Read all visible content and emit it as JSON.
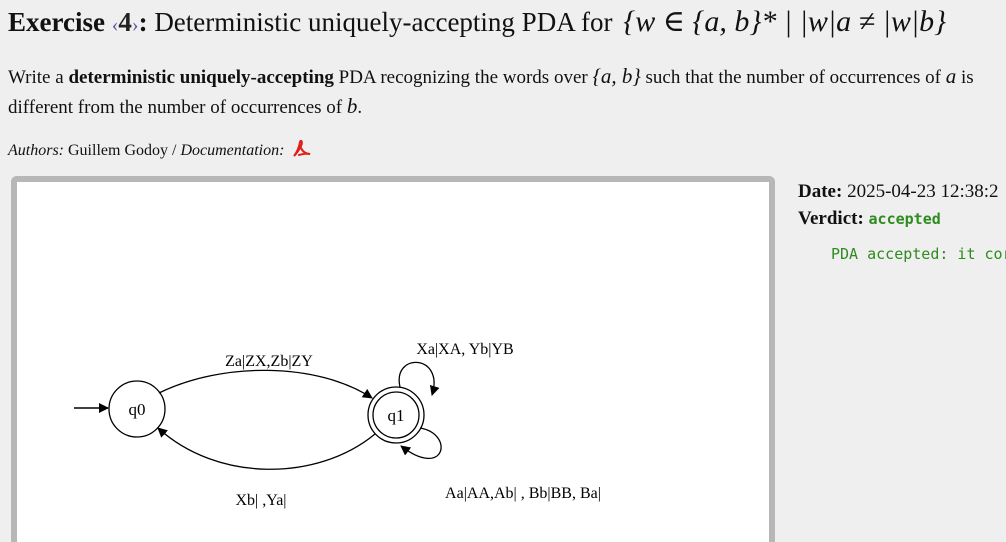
{
  "header": {
    "exercise_word": "Exercise",
    "exercise_number": "4",
    "colon": ":",
    "title_text": "Deterministic uniquely-accepting PDA for",
    "title_math": "{w ∈ {a, b}* | |w|a ≠ |w|b}"
  },
  "description": {
    "prefix": "Write a",
    "bold": "deterministic uniquely-accepting",
    "middle": "PDA recognizing the words over",
    "alphabet": "{a, b}",
    "after_alphabet": "such that the number of occurrences of",
    "sym_a": "a",
    "middle2": "is different from the number of occurrences of",
    "sym_b": "b",
    "end": "."
  },
  "authors": {
    "label": "Authors:",
    "names": "Guillem Godoy",
    "sep": " / ",
    "doc_label": "Documentation:"
  },
  "diagram": {
    "states": [
      {
        "id": "q0",
        "label": "q0",
        "initial": true,
        "accepting": false
      },
      {
        "id": "q1",
        "label": "q1",
        "initial": false,
        "accepting": true
      }
    ],
    "transitions": {
      "q0_q1": "Za|ZX,Zb|ZY",
      "q1_q0": "Xb| ,Ya|",
      "q1_loop_top": "Xa|XA, Yb|YB",
      "q1_loop_bottom": "Aa|AA,Ab| , Bb|BB, Ba|"
    }
  },
  "submission": {
    "date_label": "Date:",
    "date_value": "2025-04-23 12:38:2",
    "verdict_label": "Verdict:",
    "verdict_value": "accepted",
    "message": "PDA accepted: it cor"
  },
  "colors": {
    "verdict": "#2e8b1f",
    "pdf_icon": "#e0201b",
    "angle_brackets": "#6a4caf"
  }
}
